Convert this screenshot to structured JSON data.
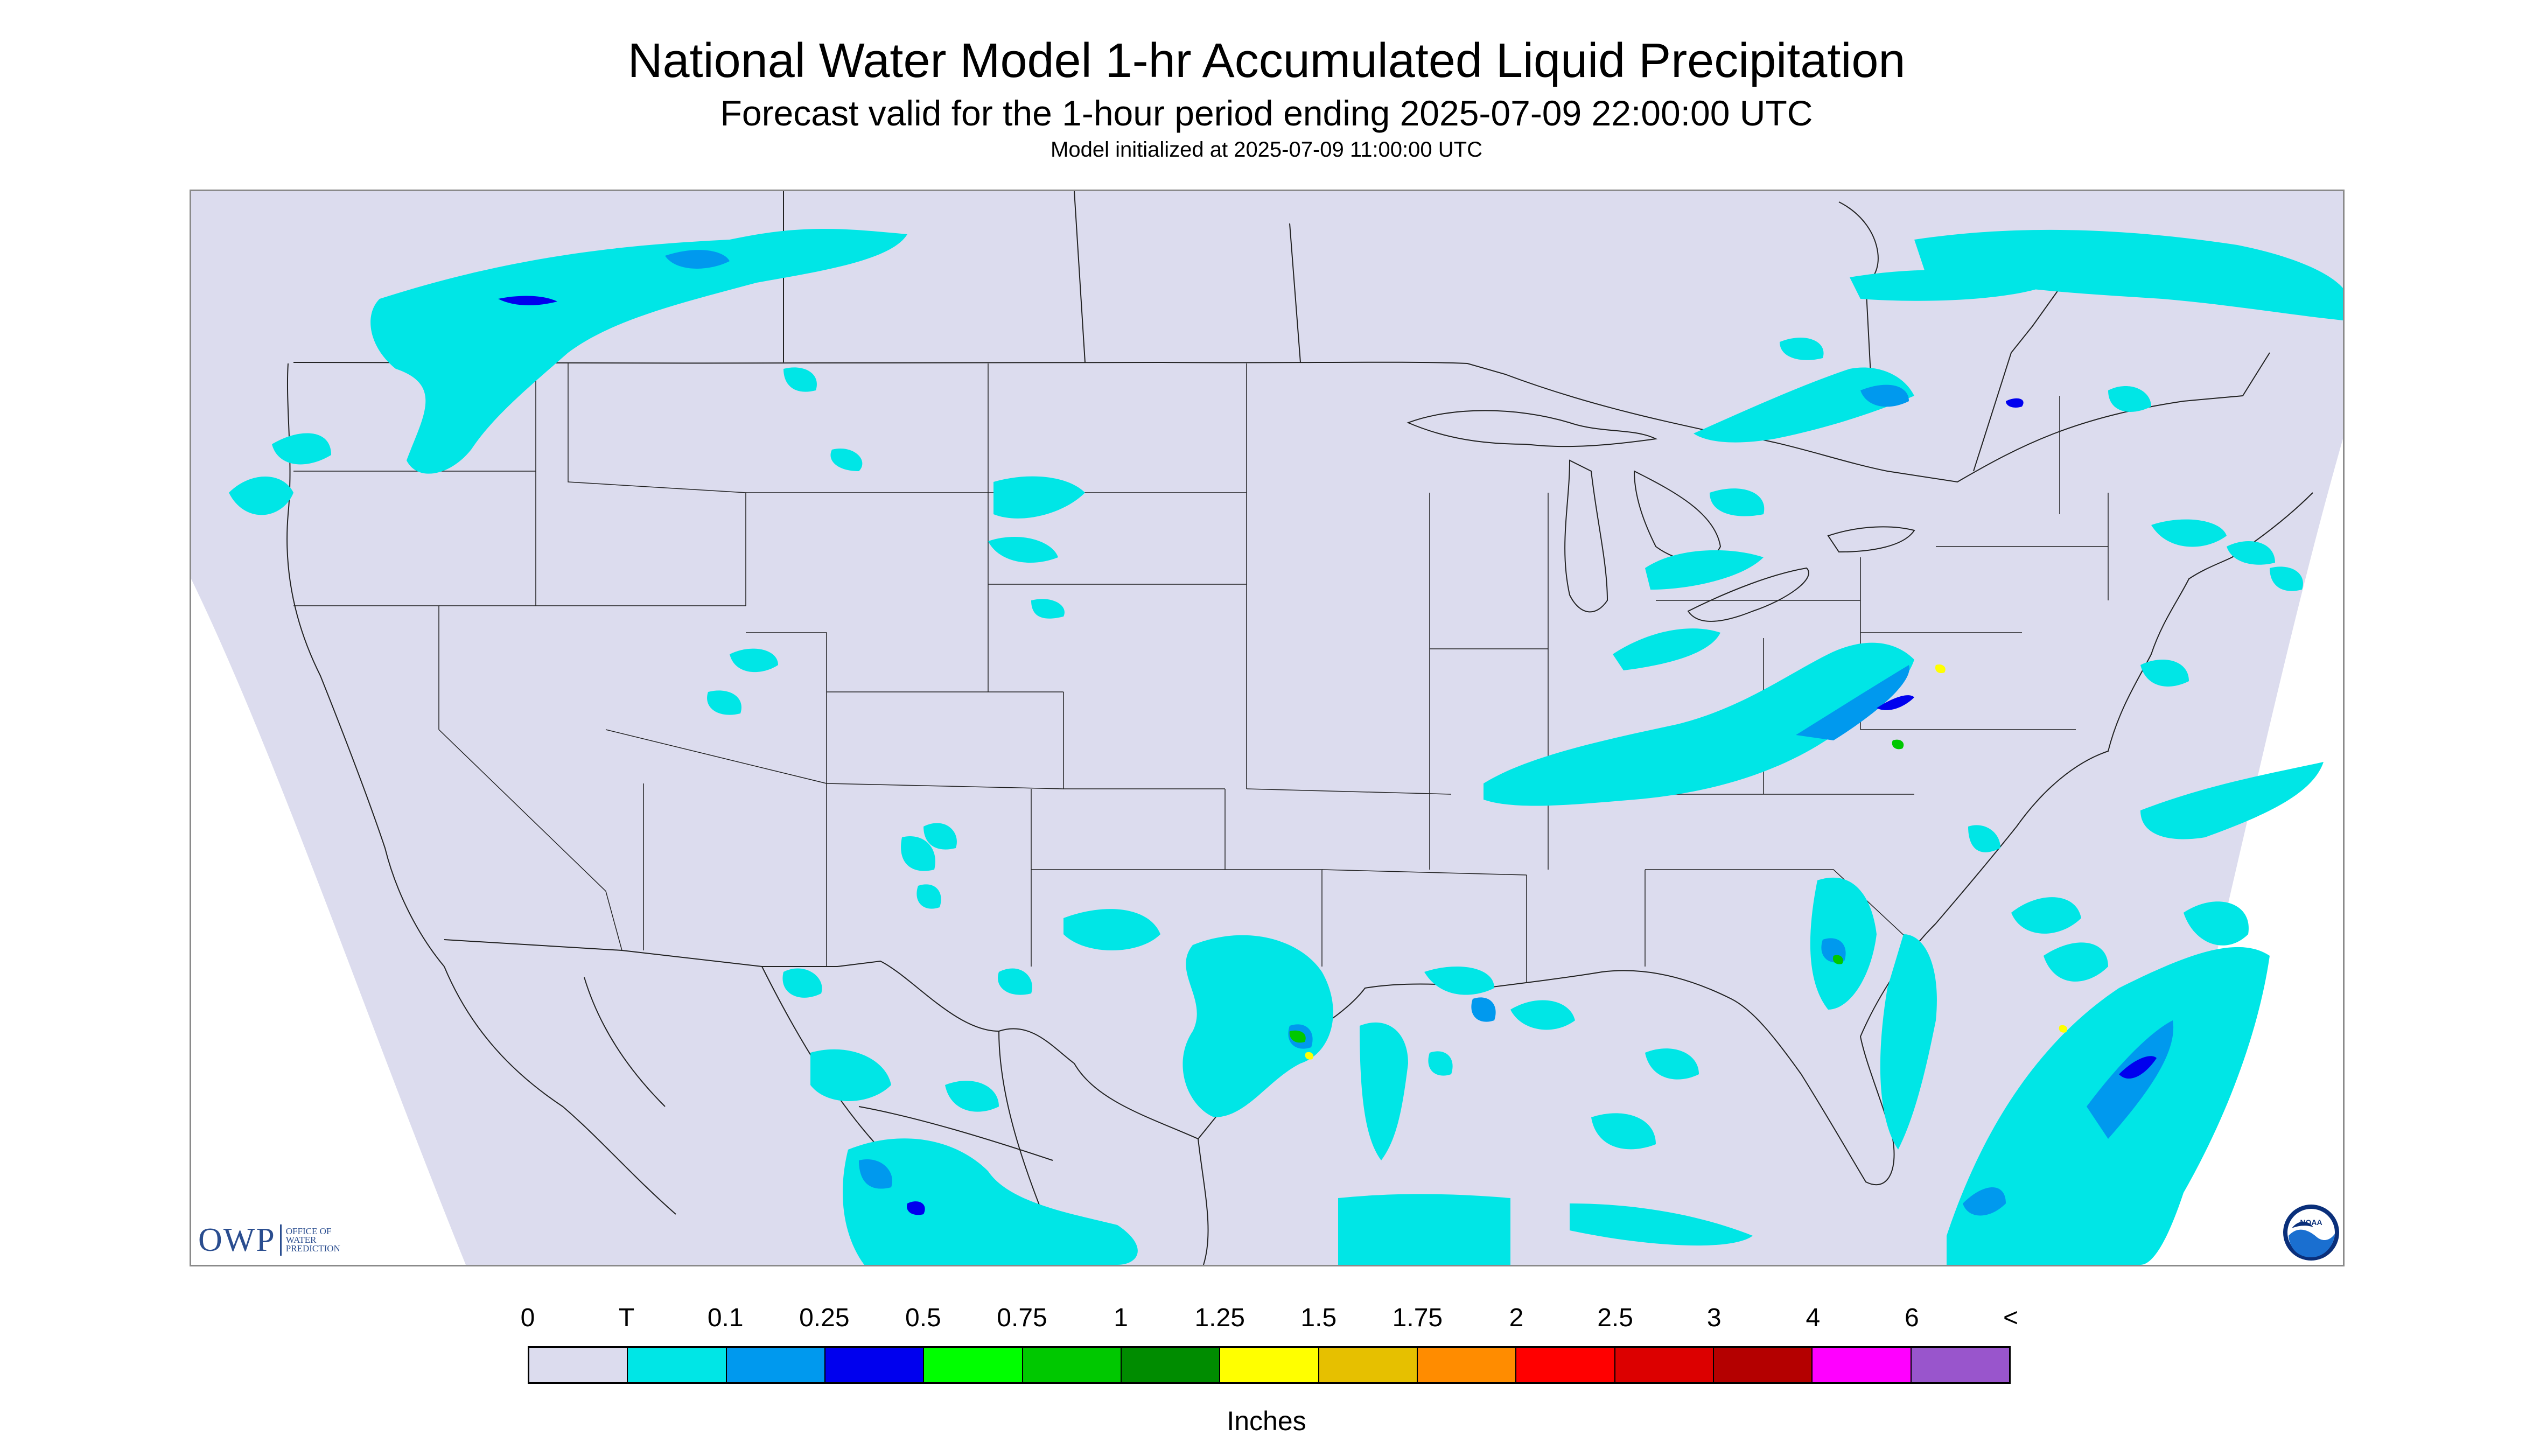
{
  "header": {
    "title": "National Water Model 1-hr Accumulated Liquid Precipitation",
    "subtitle": "Forecast valid for the 1-hour period ending 2025-07-09 22:00:00 UTC",
    "init_line": "Model initialized at 2025-07-09 11:00:00 UTC"
  },
  "logos": {
    "owp_big": "OWP",
    "owp_small_1": "OFFICE OF",
    "owp_small_2": "WATER",
    "owp_small_3": "PREDICTION",
    "noaa": "NOAA"
  },
  "colors": {
    "background_fill": "#dcdcee",
    "outside_domain": "#ffffff",
    "boundary_line": "#222222",
    "precip_trace": "#00e6e6"
  },
  "legend": {
    "tick_labels": [
      "0",
      "T",
      "0.1",
      "0.25",
      "0.5",
      "0.75",
      "1",
      "1.25",
      "1.5",
      "1.75",
      "2",
      "2.5",
      "3",
      "4",
      "6",
      "<"
    ],
    "colors": [
      "#dcdcee",
      "#00e6e6",
      "#0099ee",
      "#0000ee",
      "#00ff00",
      "#00c800",
      "#008c00",
      "#ffff00",
      "#e6c000",
      "#ff8c00",
      "#ff0000",
      "#dc0000",
      "#b40000",
      "#ff00ff",
      "#9955cc"
    ],
    "units": "Inches"
  },
  "chart_data": {
    "type": "heatmap",
    "title": "National Water Model 1-hr Accumulated Liquid Precipitation",
    "units": "Inches",
    "bins": [
      "0",
      "T",
      "0.1",
      "0.25",
      "0.5",
      "0.75",
      "1",
      "1.25",
      "1.5",
      "1.75",
      "2",
      "2.5",
      "3",
      "4",
      "6",
      "<"
    ],
    "bin_colors": [
      "#dcdcee",
      "#00e6e6",
      "#0099ee",
      "#0000ee",
      "#00ff00",
      "#00c800",
      "#008c00",
      "#ffff00",
      "#e6c000",
      "#ff8c00",
      "#ff0000",
      "#dc0000",
      "#b40000",
      "#ff00ff",
      "#9955cc"
    ]
  }
}
